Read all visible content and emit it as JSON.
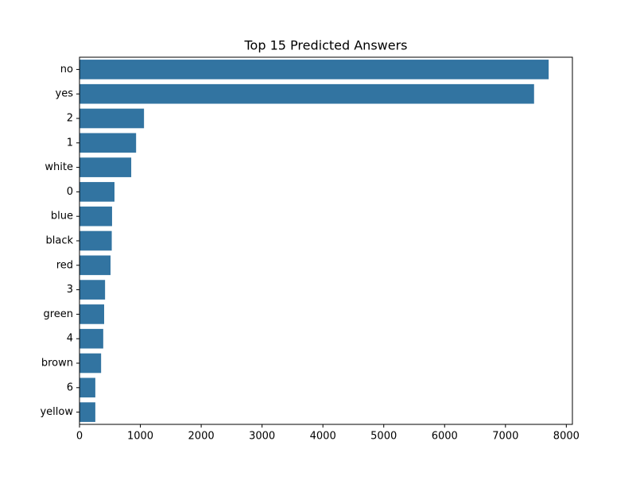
{
  "chart_data": {
    "type": "barh",
    "title": "Top 15 Predicted Answers",
    "categories": [
      "no",
      "yes",
      "2",
      "1",
      "white",
      "0",
      "blue",
      "black",
      "red",
      "3",
      "green",
      "4",
      "brown",
      "6",
      "yellow"
    ],
    "values": [
      7710,
      7470,
      1060,
      930,
      850,
      575,
      535,
      530,
      510,
      420,
      405,
      390,
      355,
      260,
      260
    ],
    "color": "#3274a1",
    "xlim": [
      0,
      8100
    ],
    "xticks": [
      0,
      1000,
      2000,
      3000,
      4000,
      5000,
      6000,
      7000,
      8000
    ],
    "grid": false
  }
}
